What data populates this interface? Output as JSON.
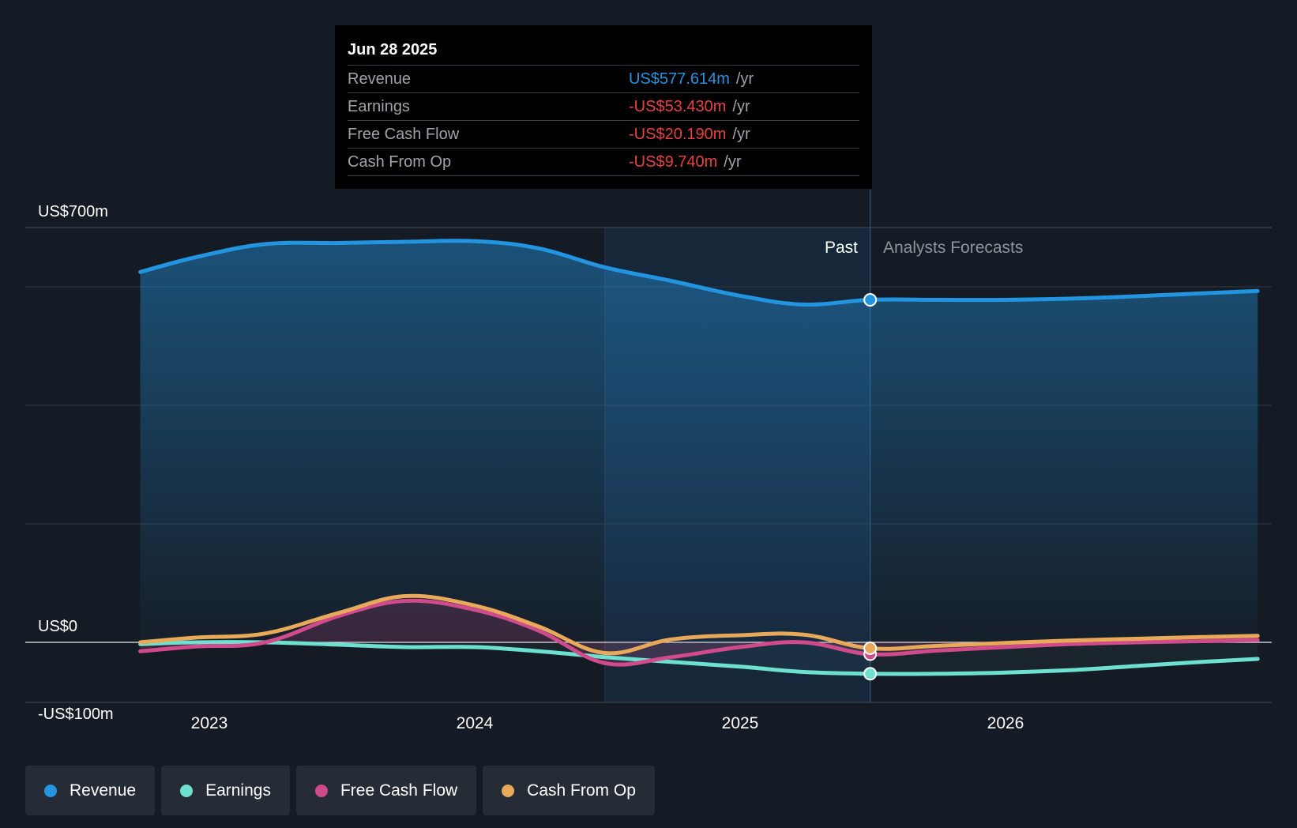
{
  "tooltip": {
    "date": "Jun 28 2025",
    "rows": [
      {
        "label": "Revenue",
        "value": "US$577.614m",
        "unit": "/yr",
        "color": "#2394df"
      },
      {
        "label": "Earnings",
        "value": "-US$53.430m",
        "unit": "/yr",
        "color": "#e64141"
      },
      {
        "label": "Free Cash Flow",
        "value": "-US$20.190m",
        "unit": "/yr",
        "color": "#e64141"
      },
      {
        "label": "Cash From Op",
        "value": "-US$9.740m",
        "unit": "/yr",
        "color": "#e64141"
      }
    ]
  },
  "past_label": "Past",
  "forecast_label": "Analysts Forecasts",
  "legend": [
    {
      "label": "Revenue",
      "color": "#2394df"
    },
    {
      "label": "Earnings",
      "color": "#6ee0cf"
    },
    {
      "label": "Free Cash Flow",
      "color": "#d04b8b"
    },
    {
      "label": "Cash From Op",
      "color": "#e8aa5a"
    }
  ],
  "chart_data": {
    "type": "area",
    "title": "",
    "xlabel": "",
    "ylabel": "",
    "y_tick_labels": [
      "US$700m",
      "US$0",
      "-US$100m"
    ],
    "x_tick_labels": [
      "2023",
      "2024",
      "2025",
      "2026"
    ],
    "ylim": [
      -100,
      700
    ],
    "xlim": [
      2022.55,
      2026.95
    ],
    "divider_x": 2025.49,
    "shaded_from_x": 2024.49,
    "gridlines": [
      0,
      200,
      400,
      600,
      700
    ],
    "series": [
      {
        "name": "Revenue",
        "color": "#2394df",
        "points": [
          [
            2022.74,
            625
          ],
          [
            2022.95,
            650
          ],
          [
            2023.21,
            672
          ],
          [
            2023.49,
            674
          ],
          [
            2023.74,
            676
          ],
          [
            2024.0,
            677
          ],
          [
            2024.24,
            665
          ],
          [
            2024.49,
            633
          ],
          [
            2024.74,
            610
          ],
          [
            2025.0,
            585
          ],
          [
            2025.24,
            570
          ],
          [
            2025.49,
            578
          ],
          [
            2025.74,
            578
          ],
          [
            2026.0,
            578
          ],
          [
            2026.24,
            580
          ],
          [
            2026.49,
            584
          ],
          [
            2026.74,
            589
          ],
          [
            2026.95,
            593
          ]
        ]
      },
      {
        "name": "Earnings",
        "color": "#6ee0cf",
        "points": [
          [
            2022.74,
            -3
          ],
          [
            2022.95,
            0
          ],
          [
            2023.21,
            0
          ],
          [
            2023.49,
            -4
          ],
          [
            2023.74,
            -8
          ],
          [
            2024.0,
            -8
          ],
          [
            2024.24,
            -15
          ],
          [
            2024.49,
            -25
          ],
          [
            2024.74,
            -33
          ],
          [
            2025.0,
            -41
          ],
          [
            2025.24,
            -50
          ],
          [
            2025.49,
            -53
          ],
          [
            2025.74,
            -53
          ],
          [
            2026.0,
            -51
          ],
          [
            2026.24,
            -47
          ],
          [
            2026.49,
            -40
          ],
          [
            2026.74,
            -33
          ],
          [
            2026.95,
            -28
          ]
        ]
      },
      {
        "name": "Free Cash Flow",
        "color": "#d04b8b",
        "points": [
          [
            2022.74,
            -15
          ],
          [
            2022.95,
            -7
          ],
          [
            2023.21,
            0
          ],
          [
            2023.49,
            45
          ],
          [
            2023.74,
            70
          ],
          [
            2024.0,
            55
          ],
          [
            2024.24,
            20
          ],
          [
            2024.49,
            -35
          ],
          [
            2024.74,
            -25
          ],
          [
            2025.0,
            -8
          ],
          [
            2025.24,
            0
          ],
          [
            2025.49,
            -20
          ],
          [
            2025.74,
            -14
          ],
          [
            2026.0,
            -8
          ],
          [
            2026.24,
            -3
          ],
          [
            2026.49,
            0
          ],
          [
            2026.74,
            2
          ],
          [
            2026.95,
            4
          ]
        ]
      },
      {
        "name": "Cash From Op",
        "color": "#e8aa5a",
        "points": [
          [
            2022.74,
            0
          ],
          [
            2022.95,
            8
          ],
          [
            2023.21,
            15
          ],
          [
            2023.49,
            50
          ],
          [
            2023.74,
            78
          ],
          [
            2024.0,
            62
          ],
          [
            2024.24,
            27
          ],
          [
            2024.49,
            -18
          ],
          [
            2024.74,
            5
          ],
          [
            2025.0,
            12
          ],
          [
            2025.24,
            13
          ],
          [
            2025.49,
            -10
          ],
          [
            2025.74,
            -6
          ],
          [
            2026.0,
            -1
          ],
          [
            2026.24,
            3
          ],
          [
            2026.49,
            6
          ],
          [
            2026.74,
            9
          ],
          [
            2026.95,
            11
          ]
        ]
      }
    ],
    "legend_position": "bottom-left",
    "grid": true
  }
}
